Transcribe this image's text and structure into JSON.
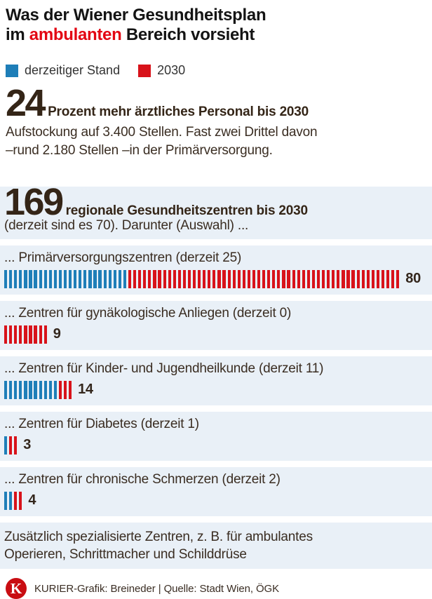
{
  "title": {
    "line1": "Was der Wiener Gesundheitsplan",
    "line2_pre": "im ",
    "line2_accent": "ambulanten",
    "line2_post": " Bereich vorsieht"
  },
  "legend": {
    "current_label": "derzeitiger Stand",
    "plan_label": "2030"
  },
  "colors": {
    "current_blue": "#1e7eb8",
    "plan_red": "#d8121a",
    "accent_red": "#e30613",
    "band_background": "#e9f0f7",
    "logo_red": "#c90d12",
    "text_dark": "#3a2d22",
    "title_black": "#141414"
  },
  "stat_personnel": {
    "number": "24",
    "headline": "Prozent mehr ärztliches Personal bis 2030",
    "body": "Aufstockung auf 3.400 Stellen. Fast zwei Drittel davon\n–rund 2.180 Stellen –in der Primärversorgung."
  },
  "centers": {
    "number": "169",
    "headline": "regionale Gesundheitszentren bis 2030",
    "subline": "(derzeit sind es 70). Darunter (Auswahl) ...",
    "rows": [
      {
        "label": "... Primärversorgungszentren (derzeit 25)",
        "current": 25,
        "planned_additional": 55,
        "total": "80"
      },
      {
        "label": "... Zentren für gynäkologische Anliegen (derzeit 0)",
        "current": 0,
        "planned_additional": 9,
        "total": "9"
      },
      {
        "label": "... Zentren für Kinder- und Jugendheilkunde (derzeit 11)",
        "current": 11,
        "planned_additional": 3,
        "total": "14"
      },
      {
        "label": "... Zentren für Diabetes (derzeit 1)",
        "current": 1,
        "planned_additional": 2,
        "total": "3"
      },
      {
        "label": "... Zentren für chronische Schmerzen (derzeit 2)",
        "current": 2,
        "planned_additional": 2,
        "total": "4"
      }
    ]
  },
  "chart_data": {
    "type": "bar",
    "subtype": "stacked-unit-tally",
    "title": "169 regionale Gesundheitszentren bis 2030 (derzeit sind es 70)",
    "legend_entries": [
      "derzeitiger Stand",
      "2030"
    ],
    "legend_position": "top",
    "categories": [
      "Primärversorgungszentren",
      "Zentren für gynäkologische Anliegen",
      "Zentren für Kinder- und Jugendheilkunde",
      "Zentren für Diabetes",
      "Zentren für chronische Schmerzen"
    ],
    "series": [
      {
        "name": "derzeitiger Stand",
        "color": "#1e7eb8",
        "values": [
          25,
          0,
          11,
          1,
          2
        ]
      },
      {
        "name": "2030",
        "color": "#d8121a",
        "values": [
          55,
          9,
          3,
          2,
          2
        ]
      }
    ],
    "totals": [
      80,
      9,
      14,
      3,
      4
    ]
  },
  "note": "Zusätzlich spezialisierte Zentren, z. B. für ambulantes\nOperieren, Schrittmacher und Schilddrüse",
  "footer": {
    "logo_letter": "K",
    "credit": "KURIER-Grafik: Breineder | Quelle: Stadt Wien, ÖGK"
  }
}
